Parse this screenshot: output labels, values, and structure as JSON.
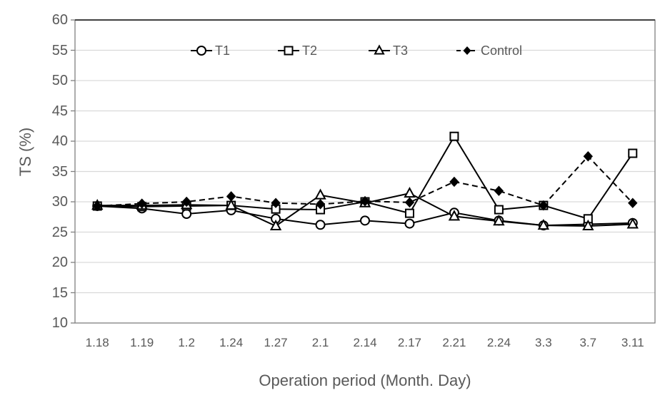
{
  "chart_data": {
    "type": "line",
    "title": "",
    "xlabel": "Operation period (Month. Day)",
    "ylabel": "TS (%)",
    "ylim": [
      10,
      60
    ],
    "ytick_step": 5,
    "yticks": [
      60,
      55,
      50,
      45,
      40,
      35,
      30,
      25,
      20,
      15,
      10
    ],
    "grid": "horizontal",
    "legend_position": "top-inside",
    "categories": [
      "1.18",
      "1.19",
      "1.2",
      "1.24",
      "1.27",
      "2.1",
      "2.14",
      "2.17",
      "2.21",
      "2.24",
      "3.3",
      "3.7",
      "3.11"
    ],
    "series": [
      {
        "name": "T1",
        "marker": "circle",
        "marker_fill": "open",
        "line": "solid",
        "values": [
          29.3,
          28.9,
          28.0,
          28.6,
          27.2,
          26.2,
          26.9,
          26.4,
          28.2,
          26.9,
          26.1,
          26.3,
          26.5
        ]
      },
      {
        "name": "T2",
        "marker": "square",
        "marker_fill": "open",
        "line": "solid",
        "values": [
          29.3,
          29.2,
          29.3,
          29.4,
          28.8,
          28.7,
          30.0,
          28.1,
          40.8,
          28.7,
          29.4,
          27.2,
          38.0
        ]
      },
      {
        "name": "T3",
        "marker": "triangle",
        "marker_fill": "open",
        "line": "solid",
        "values": [
          29.4,
          29.4,
          29.5,
          29.4,
          26.0,
          31.1,
          29.8,
          31.4,
          27.6,
          26.8,
          26.1,
          26.0,
          26.3
        ]
      },
      {
        "name": "Control",
        "marker": "diamond",
        "marker_fill": "filled",
        "line": "dashed",
        "values": [
          29.3,
          29.7,
          30.0,
          30.9,
          29.8,
          29.6,
          30.1,
          29.9,
          33.3,
          31.8,
          29.4,
          37.5,
          29.8
        ]
      }
    ],
    "colors": {
      "series": "#000000",
      "axis_text": "#595959",
      "gridline": "#d9d9d9",
      "plot_border": "#808080",
      "top_border": "#404040"
    }
  }
}
